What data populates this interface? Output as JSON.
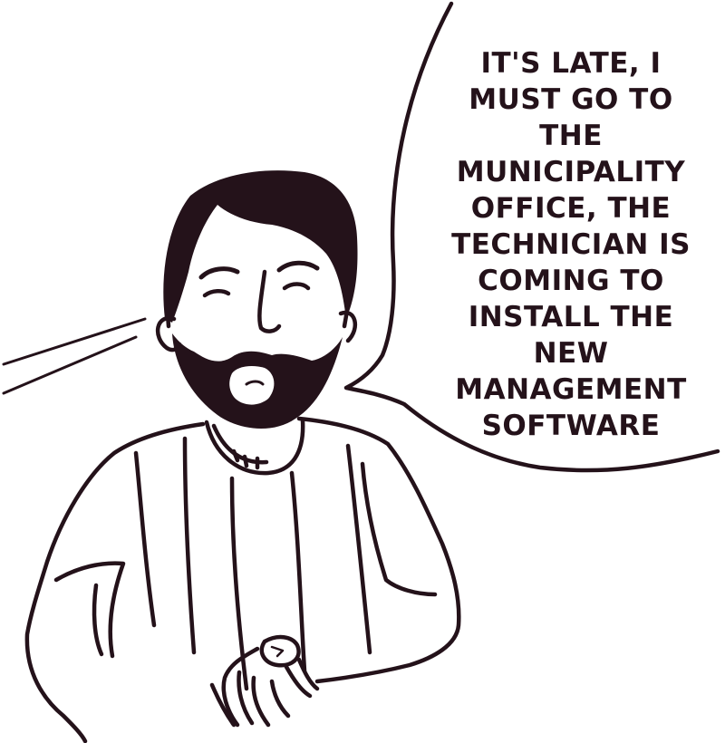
{
  "colors": {
    "ink": "#24121a",
    "paper": "#ffffff"
  },
  "speech_bubble": {
    "lines": [
      "IT'S LATE, I",
      "MUST GO TO",
      "THE",
      "MUNICIPALITY",
      "OFFICE, THE",
      "TECHNICIAN IS",
      "COMING TO",
      "INSTALL THE",
      "NEW",
      "MANAGEMENT",
      "SOFTWARE"
    ]
  }
}
